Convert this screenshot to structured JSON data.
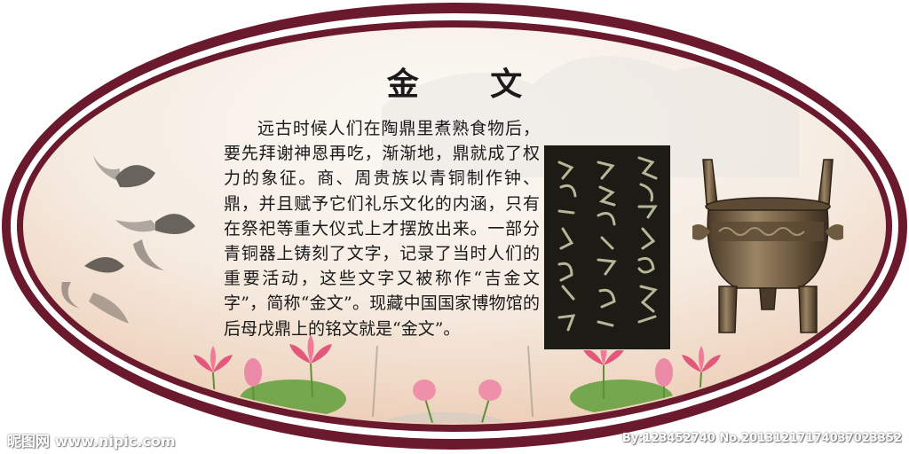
{
  "panel": {
    "title": "金 文",
    "body": "远古时候人们在陶鼎里煮熟食物后，要先拜谢神恩再吃，渐渐地，鼎就成了权力的象征。商、周贵族以青铜制作钟、鼎，并且赋予它们礼乐文化的内涵，只有在祭祀等重大仪式上才摆放出来。一部分青铜器上铸刻了文字，记录了当时人们的重要活动，这些文字又被称作“吉金文字”，简称“金文”。现藏中国国家博物馆的后母戊鼎上的铭文就是“金文”。",
    "icons": {
      "frame": "oval-frame-icon",
      "inscription": "bronze-inscription-rubbing-icon",
      "vessel": "bronze-ding-vessel-icon",
      "fish": "goldfish-ink-icon",
      "lotus": "lotus-flower-icon"
    }
  },
  "watermark": {
    "left": "昵图网 www.nipic.com",
    "right": "By:123452740 No.20131217174037023352"
  },
  "colors": {
    "frame": "#6b1a2e",
    "inner_ring": "#ffffff",
    "background_top": "#faf8f4",
    "background_bottom": "#f0d8c4",
    "lotus": "#e2587a",
    "leaf": "#5f9f3a"
  }
}
